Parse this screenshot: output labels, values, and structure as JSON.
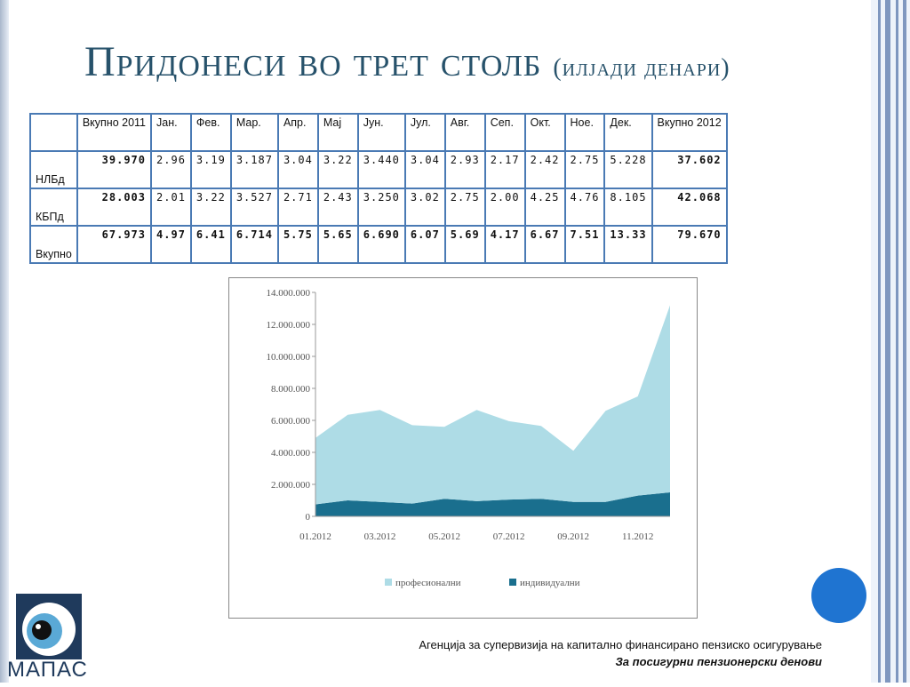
{
  "title": {
    "main": "Придонеси во трет столб",
    "sub": "(илјади денари)"
  },
  "table": {
    "headers": [
      "",
      "Вкупно 2011",
      "Јан.",
      "Фев.",
      "Мар.",
      "Апр.",
      "Мај",
      "Јун.",
      "Јул.",
      "Авг.",
      "Сеп.",
      "Окт.",
      "Ное.",
      "Дек.",
      "Вкупно 2012"
    ],
    "rows": [
      {
        "label": "НЛБд",
        "total2011": "39.970",
        "months": [
          "2.96",
          "3.19",
          "3.187",
          "3.04",
          "3.22",
          "3.440",
          "3.04",
          "2.93",
          "2.17",
          "2.42",
          "2.75",
          "5.228"
        ],
        "total2012": "37.602"
      },
      {
        "label": "КБПд",
        "total2011": "28.003",
        "months": [
          "2.01",
          "3.22",
          "3.527",
          "2.71",
          "2.43",
          "3.250",
          "3.02",
          "2.75",
          "2.00",
          "4.25",
          "4.76",
          "8.105"
        ],
        "total2012": "42.068"
      },
      {
        "label": "Вкупно",
        "total2011": "67.973",
        "months": [
          "4.97",
          "6.41",
          "6.714",
          "5.75",
          "5.65",
          "6.690",
          "6.07",
          "5.69",
          "4.17",
          "6.67",
          "7.51",
          "13.33"
        ],
        "total2012": "79.670",
        "bold": true
      }
    ]
  },
  "chart_data": {
    "type": "area",
    "stacked": true,
    "x": [
      "01.2012",
      "02.2012",
      "03.2012",
      "04.2012",
      "05.2012",
      "06.2012",
      "07.2012",
      "08.2012",
      "09.2012",
      "10.2012",
      "11.2012",
      "12.2012"
    ],
    "x_tick_labels": [
      "01.2012",
      "03.2012",
      "05.2012",
      "07.2012",
      "09.2012",
      "11.2012"
    ],
    "y_ticks": [
      "0",
      "2.000.000",
      "4.000.000",
      "6.000.000",
      "8.000.000",
      "10.000.000",
      "12.000.000",
      "14.000.000"
    ],
    "ylim": [
      0,
      14000000
    ],
    "series": [
      {
        "name": "индивидуални",
        "color": "#1a6f8e",
        "values": [
          750000,
          1000000,
          900000,
          800000,
          1100000,
          950000,
          1050000,
          1100000,
          900000,
          900000,
          1300000,
          1500000
        ]
      },
      {
        "name": "професионални",
        "color": "#aedce6",
        "values": [
          4150000,
          5350000,
          5750000,
          4900000,
          4500000,
          5700000,
          4900000,
          4550000,
          3200000,
          5700000,
          6200000,
          11700000
        ]
      }
    ],
    "legend_position": "bottom",
    "grid": false
  },
  "footer": {
    "line1": "Агенција за супервизија на капитално финансирано пензиско осигурување",
    "line2": "За посигурни пензионерски денови"
  },
  "logo": {
    "text": "МАПАС"
  },
  "colors": {
    "title": "#27526b",
    "table_border": "#4a7ab4",
    "accent_dot": "#1f74d1",
    "frame_stripe": "#7f97bf"
  }
}
